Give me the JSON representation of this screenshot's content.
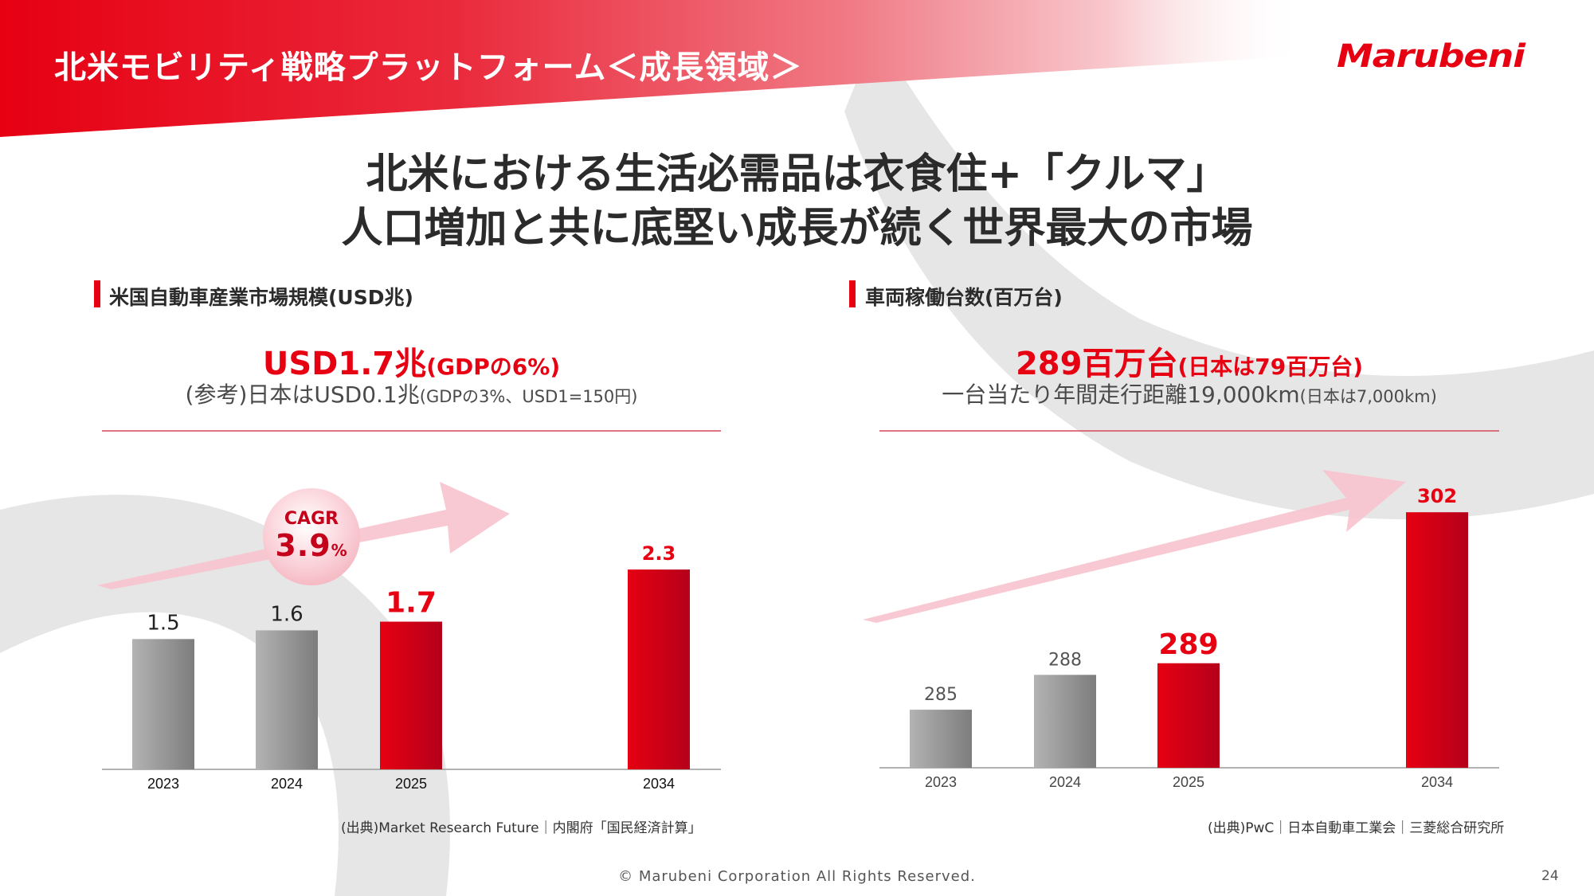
{
  "header": {
    "title": "北米モビリティ戦略プラットフォーム＜成長領域＞",
    "logo": "Marubeni"
  },
  "headline": {
    "line1": "北米における生活必需品は衣食住+「クルマ」",
    "line2": "人口増加と共に底堅い成長が続く世界最大の市場"
  },
  "left_panel": {
    "section_title": "米国自動車産業市場規模(USD兆)",
    "kpi_main": "USD1.7兆",
    "kpi_note": "(GDPの6%)",
    "sub_main": "(参考)日本はUSD0.1兆",
    "sub_note": "(GDPの3%、USD1=150円)",
    "cagr_label": "CAGR",
    "cagr_value": "3.9",
    "cagr_unit": "%",
    "source": "(出典)Market Research Future｜内閣府「国民経済計算」"
  },
  "right_panel": {
    "section_title": "車両稼働台数(百万台)",
    "kpi_main": "289百万台",
    "kpi_note": "(日本は79百万台)",
    "sub_main": "一台当たり年間走行距離19,000km",
    "sub_note": "(日本は7,000km)",
    "source": "(出典)PwC｜日本自動車工業会｜三菱総合研究所"
  },
  "chart_data": [
    {
      "type": "bar",
      "categories": [
        "2023",
        "2024",
        "2025",
        "2034"
      ],
      "values": [
        1.5,
        1.6,
        1.7,
        2.3
      ],
      "data_labels": [
        "1.5",
        "1.6",
        "1.7",
        "2.3"
      ],
      "title": "米国自動車産業市場規模(USD兆)",
      "highlight": [
        "2025",
        "2034"
      ],
      "ylim": [
        0,
        2.75
      ],
      "colors": {
        "past": "#9a9a9a",
        "highlight": "#e60012"
      }
    },
    {
      "type": "bar",
      "categories": [
        "2023",
        "2024",
        "2025",
        "2034"
      ],
      "values": [
        285,
        288,
        289,
        302
      ],
      "data_labels": [
        "285",
        "288",
        "289",
        "302"
      ],
      "title": "車両稼働台数(百万台)",
      "highlight": [
        "2025",
        "2034"
      ],
      "ylim": [
        280,
        304
      ],
      "colors": {
        "past": "#9a9a9a",
        "highlight": "#e60012"
      }
    }
  ],
  "footer": {
    "copyright": "© Marubeni Corporation All Rights Reserved.",
    "page": "24"
  }
}
